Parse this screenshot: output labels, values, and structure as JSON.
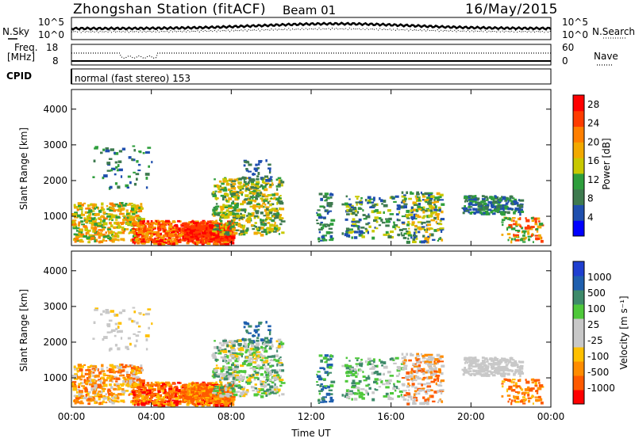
{
  "header": {
    "title": "Zhongshan Station (fitACF)",
    "beam": "Beam 01",
    "date": "16/May/2015"
  },
  "top_panel": {
    "left_label": "N.Sky",
    "right_label": "N.Search",
    "left_ticks": [
      "10^5",
      "10^0"
    ],
    "right_ticks": [
      "10^5",
      "10^0"
    ]
  },
  "freq_panel": {
    "left_label_1": "Freq.",
    "left_label_2": "[MHz]",
    "right_label": "Nave",
    "left_ticks": [
      "18",
      "8"
    ],
    "right_ticks": [
      "60",
      "0"
    ]
  },
  "cpid": {
    "label": "CPID",
    "value": "normal (fast stereo) 153"
  },
  "colors": {
    "power_scale": [
      "#0000ff",
      "#1f4fae",
      "#3e7a4f",
      "#2e9e3c",
      "#c8c800",
      "#f2a900",
      "#ff7f00",
      "#ff3c00",
      "#ff0000"
    ],
    "velocity_scale": [
      "#ff0000",
      "#ff5a00",
      "#ff8c00",
      "#ffc000",
      "#c8c8c8",
      "#c8c8c8",
      "#4ec83a",
      "#3e8a6a",
      "#1f5fae",
      "#1f3fd0"
    ]
  },
  "chart_data": [
    {
      "type": "heatmap",
      "title": "",
      "xlabel": "",
      "ylabel": "Slant Range [km]",
      "x_ticks": [
        "00:00",
        "04:00",
        "08:00",
        "12:00",
        "16:00",
        "20:00",
        "00:00"
      ],
      "y_ticks": [
        1000,
        2000,
        3000,
        4000
      ],
      "ylim": [
        180,
        4550
      ],
      "xlim_hours": [
        0,
        24
      ],
      "colorbar_label": "Power [dB]",
      "colorbar_ticks": [
        4,
        8,
        12,
        16,
        20,
        24,
        28
      ],
      "colorbar_range": [
        0,
        30
      ]
    },
    {
      "type": "heatmap",
      "title": "",
      "xlabel": "Time UT",
      "ylabel": "Slant Range [km]",
      "x_ticks": [
        "00:00",
        "04:00",
        "08:00",
        "12:00",
        "16:00",
        "20:00",
        "00:00"
      ],
      "y_ticks": [
        1000,
        2000,
        3000,
        4000
      ],
      "ylim": [
        180,
        4550
      ],
      "xlim_hours": [
        0,
        24
      ],
      "colorbar_label": "Velocity [m s⁻¹]",
      "colorbar_ticks": [
        "1000",
        "500",
        "100",
        "25",
        "-25",
        "-100",
        "-500",
        "-1000"
      ]
    }
  ]
}
